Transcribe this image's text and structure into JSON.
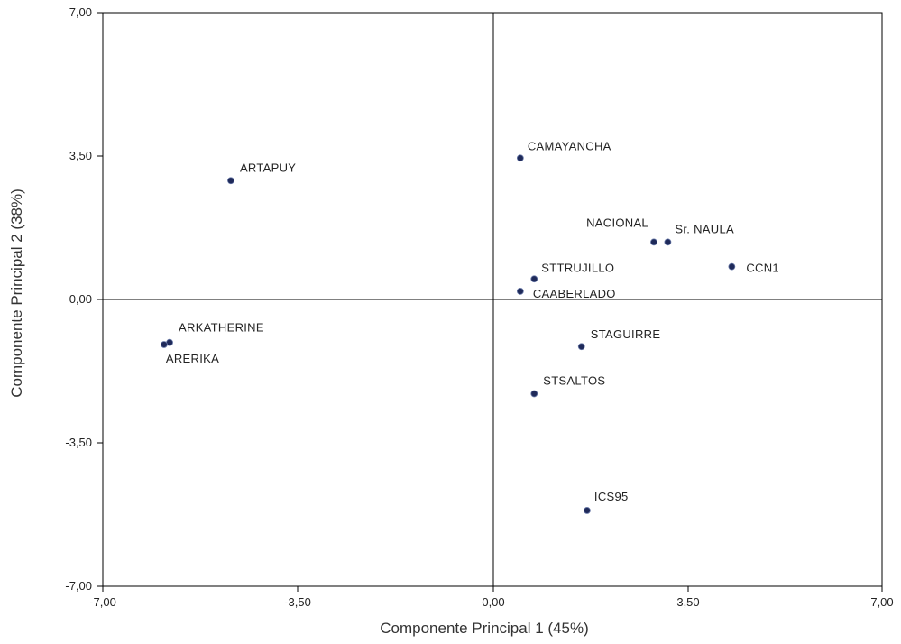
{
  "chart_data": {
    "type": "scatter",
    "xlabel": "Componente Principal 1 (45%)",
    "ylabel": "Componente Principal 2 (38%)",
    "xlim": [
      -7,
      7
    ],
    "ylim": [
      -7,
      7
    ],
    "x_ticks": [
      "-7,00",
      "-3,50",
      "0,00",
      "3,50",
      "7,00"
    ],
    "y_ticks": [
      "7,00",
      "3,50",
      "0,00",
      "-3,50",
      "-7,00"
    ],
    "grid": false,
    "reference_lines": {
      "x": 0,
      "y": 0
    },
    "marker_color": "#1f2a5a",
    "points": [
      {
        "label": "ARTAPUY",
        "x": -4.7,
        "y": 2.9
      },
      {
        "label": "CAMAYANCHA",
        "x": 0.5,
        "y": 3.45
      },
      {
        "label": "NACIONAL",
        "x": 2.9,
        "y": 1.4
      },
      {
        "label": "Sr. NAULA",
        "x": 3.15,
        "y": 1.4
      },
      {
        "label": "CCN1",
        "x": 4.3,
        "y": 0.8
      },
      {
        "label": "STTRUJILLO",
        "x": 0.75,
        "y": 0.5
      },
      {
        "label": "CAABERLADO",
        "x": 0.5,
        "y": 0.2
      },
      {
        "label": "ARKATHERINE",
        "x": -5.8,
        "y": -1.05
      },
      {
        "label": "ARERIKA",
        "x": -5.9,
        "y": -1.1
      },
      {
        "label": "STAGUIRRE",
        "x": 1.6,
        "y": -1.15
      },
      {
        "label": "STSALTOS",
        "x": 0.75,
        "y": -2.3
      },
      {
        "label": "ICS95",
        "x": 1.7,
        "y": -5.15
      }
    ]
  }
}
